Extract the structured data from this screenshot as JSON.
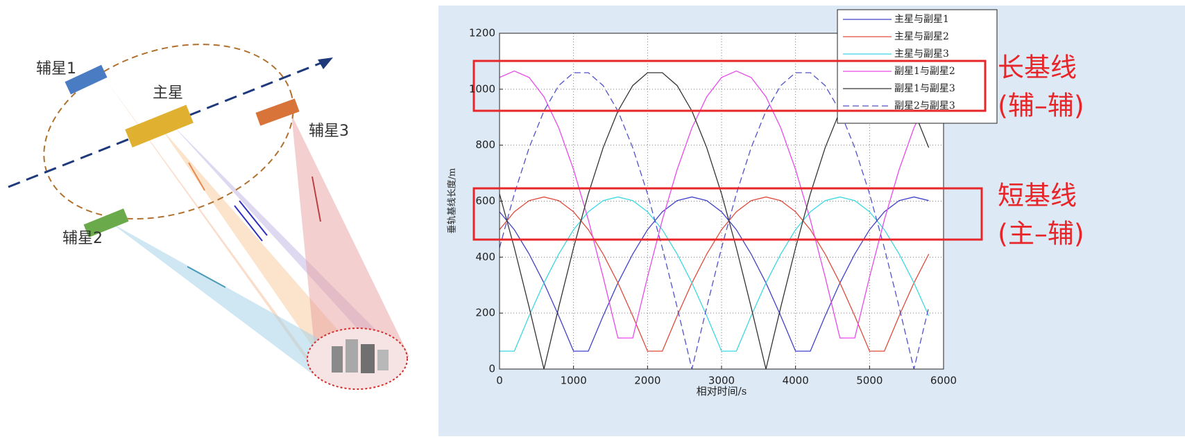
{
  "illustration": {
    "labels": [
      "辅星1",
      "主星",
      "辅星3",
      "辅星2"
    ]
  },
  "chart_data": {
    "type": "line",
    "xlabel": "相对时间/s",
    "ylabel": "垂轨基线长度/m",
    "annotations": [
      "长基线",
      "(辅–辅)",
      "短基线",
      "(主–辅)"
    ],
    "x": [
      0,
      200,
      400,
      600,
      800,
      1000,
      1200,
      1400,
      1600,
      1800,
      2000,
      2200,
      2400,
      2600,
      2800,
      3000,
      3200,
      3400,
      3600,
      3800,
      4000,
      4200,
      4400,
      4600,
      4800,
      5000,
      5200,
      5400,
      5600,
      5800
    ],
    "series": [
      {
        "name": "主星与副星1",
        "color": "#4040c8",
        "dashed": false,
        "values": [
          562,
          498,
          411,
          308,
          190,
          64,
          64,
          190,
          308,
          411,
          498,
          562,
          602,
          615,
          602,
          562,
          498,
          411,
          308,
          190,
          64,
          64,
          190,
          308,
          411,
          498,
          562,
          602,
          615,
          602
        ]
      },
      {
        "name": "主星与副星2",
        "color": "#e04a3a",
        "dashed": false,
        "values": [
          498,
          562,
          602,
          615,
          602,
          562,
          498,
          411,
          308,
          190,
          64,
          64,
          190,
          308,
          411,
          498,
          562,
          602,
          615,
          602,
          562,
          498,
          411,
          308,
          190,
          64,
          64,
          190,
          308,
          411
        ]
      },
      {
        "name": "主星与副星3",
        "color": "#3ad8e0",
        "dashed": false,
        "values": [
          64,
          64,
          190,
          308,
          411,
          498,
          562,
          602,
          615,
          602,
          562,
          498,
          411,
          308,
          190,
          64,
          64,
          190,
          308,
          411,
          498,
          562,
          602,
          615,
          602,
          562,
          498,
          411,
          308,
          190
        ]
      },
      {
        "name": "副星1与副星2",
        "color": "#e84ae8",
        "dashed": false,
        "values": [
          1042,
          1065,
          1042,
          973,
          862,
          713,
          533,
          329,
          111,
          111,
          329,
          533,
          713,
          862,
          973,
          1042,
          1065,
          1042,
          973,
          862,
          713,
          533,
          329,
          111,
          111,
          329,
          533,
          713,
          862,
          973
        ]
      },
      {
        "name": "副星1与副星3",
        "color": "#333333",
        "dashed": false,
        "values": [
          626,
          433,
          221,
          0,
          221,
          433,
          626,
          791,
          922,
          1013,
          1059,
          1059,
          1013,
          922,
          791,
          626,
          433,
          221,
          0,
          221,
          433,
          626,
          791,
          922,
          1013,
          1059,
          1059,
          1013,
          922,
          791
        ]
      },
      {
        "name": "副星2与副星3",
        "color": "#5050c8",
        "dashed": true,
        "values": [
          433,
          626,
          791,
          922,
          1013,
          1059,
          1059,
          1013,
          922,
          791,
          626,
          433,
          221,
          0,
          221,
          433,
          626,
          791,
          922,
          1013,
          1059,
          1059,
          1013,
          922,
          791,
          626,
          433,
          221,
          0,
          221
        ]
      }
    ],
    "xlim": [
      0,
      6000
    ],
    "ylim": [
      0,
      1200
    ],
    "xticks": [
      0,
      1000,
      2000,
      3000,
      4000,
      5000,
      6000
    ],
    "yticks": [
      0,
      200,
      400,
      600,
      800,
      1000,
      1200
    ],
    "grid": true,
    "legend": "upper right"
  }
}
